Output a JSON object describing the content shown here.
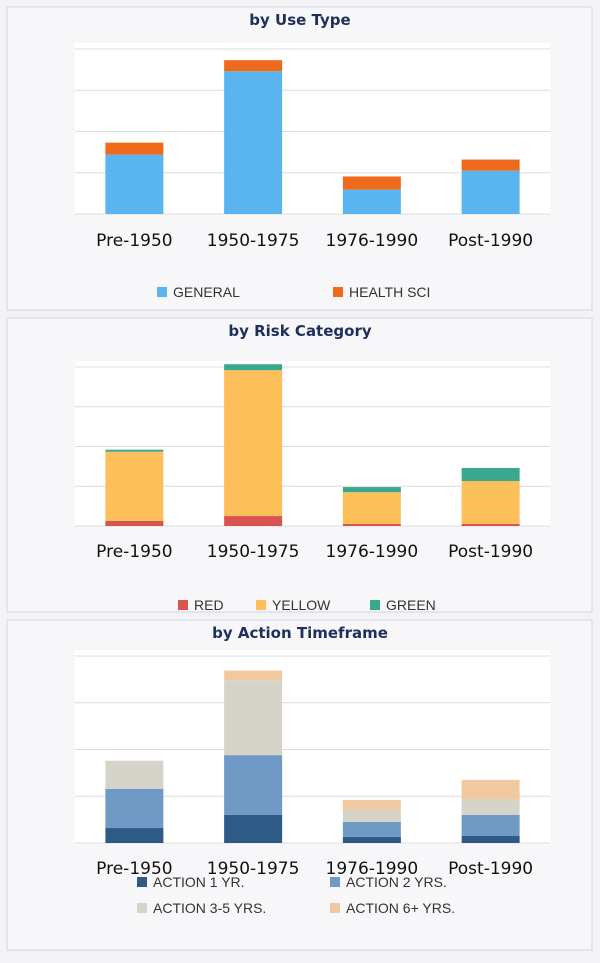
{
  "chart_data": [
    {
      "type": "bar",
      "stacked": true,
      "title": "by Use Type",
      "categories": [
        "Pre-1950",
        "1950-1975",
        "1976-1990",
        "Post-1990"
      ],
      "series": [
        {
          "name": "GENERAL",
          "color": "#5ab4f0",
          "values": [
            1.44,
            3.46,
            0.59,
            1.05
          ]
        },
        {
          "name": "HEALTH SCI",
          "color": "#f06a1e",
          "values": [
            0.29,
            0.27,
            0.32,
            0.27
          ]
        }
      ],
      "ylim": [
        0,
        4
      ],
      "yticks": [
        0,
        1,
        2,
        3,
        4
      ],
      "grid": true,
      "legend": "bottom"
    },
    {
      "type": "bar",
      "stacked": true,
      "title": "by Risk Category",
      "categories": [
        "Pre-1950",
        "1950-1975",
        "1976-1990",
        "Post-1990"
      ],
      "series": [
        {
          "name": "RED",
          "color": "#d9544f",
          "values": [
            0.13,
            0.25,
            0.05,
            0.05
          ]
        },
        {
          "name": "YELLOW",
          "color": "#fdbf5a",
          "values": [
            1.74,
            3.67,
            0.8,
            1.08
          ]
        },
        {
          "name": "GREEN",
          "color": "#3aa88e",
          "values": [
            0.05,
            0.15,
            0.13,
            0.33
          ]
        }
      ],
      "ylim": [
        0,
        4
      ],
      "yticks": [
        0,
        1,
        2,
        3,
        4
      ],
      "grid": true,
      "legend": "bottom"
    },
    {
      "type": "bar",
      "stacked": true,
      "title": "by Action Timeframe",
      "categories": [
        "Pre-1950",
        "1950-1975",
        "1976-1990",
        "Post-1990"
      ],
      "series": [
        {
          "name": "ACTION 1 YR.",
          "color": "#2e5a88",
          "values": [
            0.32,
            0.6,
            0.13,
            0.15
          ]
        },
        {
          "name": "ACTION 2 YRS.",
          "color": "#6f9ac6",
          "values": [
            0.84,
            1.28,
            0.32,
            0.45
          ]
        },
        {
          "name": "ACTION 3-5 YRS.",
          "color": "#d6d3c8",
          "values": [
            0.6,
            1.6,
            0.26,
            0.34
          ]
        },
        {
          "name": "ACTION 6+ YRS.",
          "color": "#f0c9a0",
          "values": [
            0,
            0.21,
            0.21,
            0.41
          ]
        }
      ],
      "ylim": [
        0,
        4
      ],
      "yticks": [
        0,
        1,
        2,
        3,
        4
      ],
      "grid": true,
      "legend": "bottom"
    }
  ]
}
